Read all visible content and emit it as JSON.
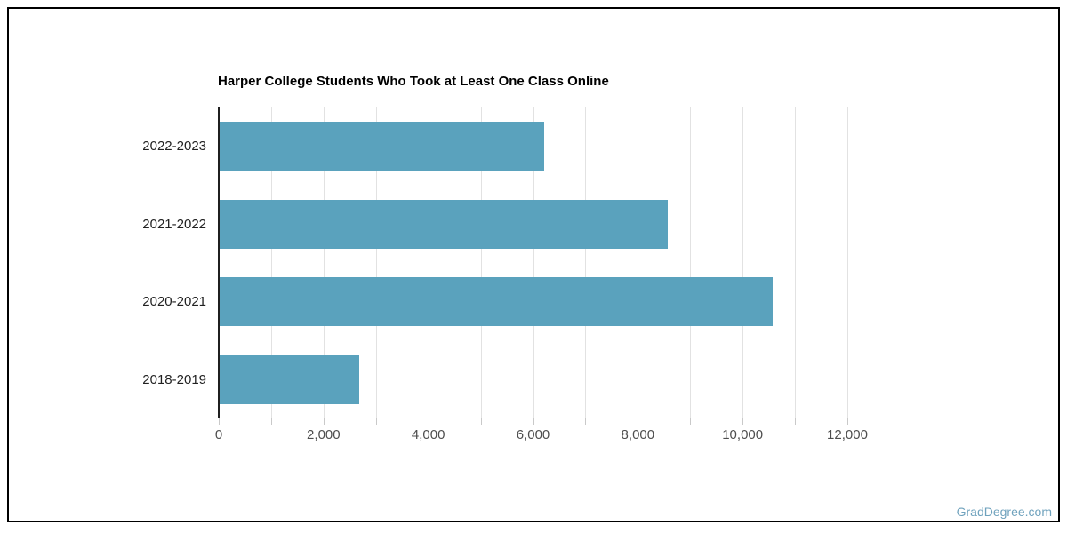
{
  "watermark": {
    "text": "GradDegree.com",
    "color": "#6fa2bd"
  },
  "chart_data": {
    "type": "bar",
    "orientation": "horizontal",
    "title": "Harper College Students Who Took at Least One Class Online",
    "categories": [
      "2022-2023",
      "2021-2022",
      "2020-2021",
      "2018-2019"
    ],
    "values": [
      6200,
      8560,
      10560,
      2670
    ],
    "xlabel": "",
    "ylabel": "",
    "xlim": [
      0,
      12000
    ],
    "x_ticks": [
      0,
      2000,
      4000,
      6000,
      8000,
      10000,
      12000
    ],
    "x_tick_labels": [
      "0",
      "2,000",
      "4,000",
      "6,000",
      "8,000",
      "10,000",
      "12,000"
    ],
    "grid_interval": 1000,
    "grid": true,
    "legend": false,
    "bar_color": "#5aa2bd",
    "axis_color": "#1f1f1f",
    "gridline_color": "#e2e2e2",
    "title_color": "#000000",
    "category_label_color": "#212121",
    "tick_label_color": "#4d4d4d"
  }
}
